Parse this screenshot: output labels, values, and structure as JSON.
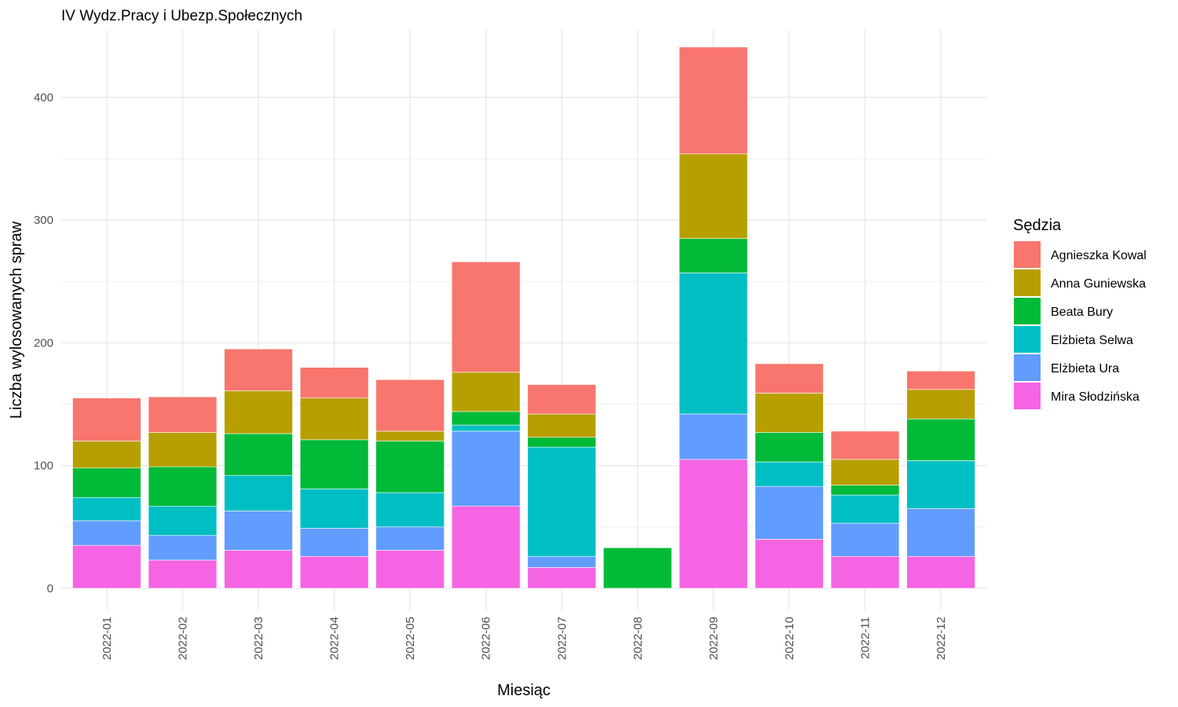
{
  "chart_data": {
    "type": "bar",
    "stacked": true,
    "title": "IV Wydz.Pracy i Ubezp.Społecznych",
    "xlabel": "Miesiąc",
    "ylabel": "Liczba wylosowanych spraw",
    "ylim": [
      -18,
      455
    ],
    "yticks": [
      0,
      100,
      200,
      300,
      400
    ],
    "grid": true,
    "legend": {
      "title": "Sędzia",
      "position": "right"
    },
    "categories": [
      "2022-01",
      "2022-02",
      "2022-03",
      "2022-04",
      "2022-05",
      "2022-06",
      "2022-07",
      "2022-08",
      "2022-09",
      "2022-10",
      "2022-11",
      "2022-12"
    ],
    "series": [
      {
        "name": "Mira Słodzińska",
        "color": "#F564E3",
        "values": [
          35,
          23,
          31,
          26,
          31,
          67,
          17,
          0,
          105,
          40,
          26,
          26
        ]
      },
      {
        "name": "Elżbieta Ura",
        "color": "#619CFF",
        "values": [
          20,
          20,
          32,
          23,
          19,
          61,
          9,
          0,
          37,
          43,
          27,
          39
        ]
      },
      {
        "name": "Elżbieta Selwa",
        "color": "#00BFC4",
        "values": [
          19,
          24,
          29,
          32,
          28,
          5,
          89,
          0,
          115,
          20,
          23,
          39
        ]
      },
      {
        "name": "Beata Bury",
        "color": "#00BA38",
        "values": [
          24,
          32,
          34,
          40,
          42,
          11,
          8,
          33,
          28,
          24,
          8,
          34
        ]
      },
      {
        "name": "Anna Guniewska",
        "color": "#B79F00",
        "values": [
          22,
          28,
          35,
          34,
          8,
          32,
          19,
          0,
          69,
          32,
          21,
          24
        ]
      },
      {
        "name": "Agnieszka Kowal",
        "color": "#F8766D",
        "values": [
          35,
          29,
          34,
          25,
          42,
          90,
          24,
          0,
          87,
          24,
          23,
          15
        ]
      }
    ]
  }
}
